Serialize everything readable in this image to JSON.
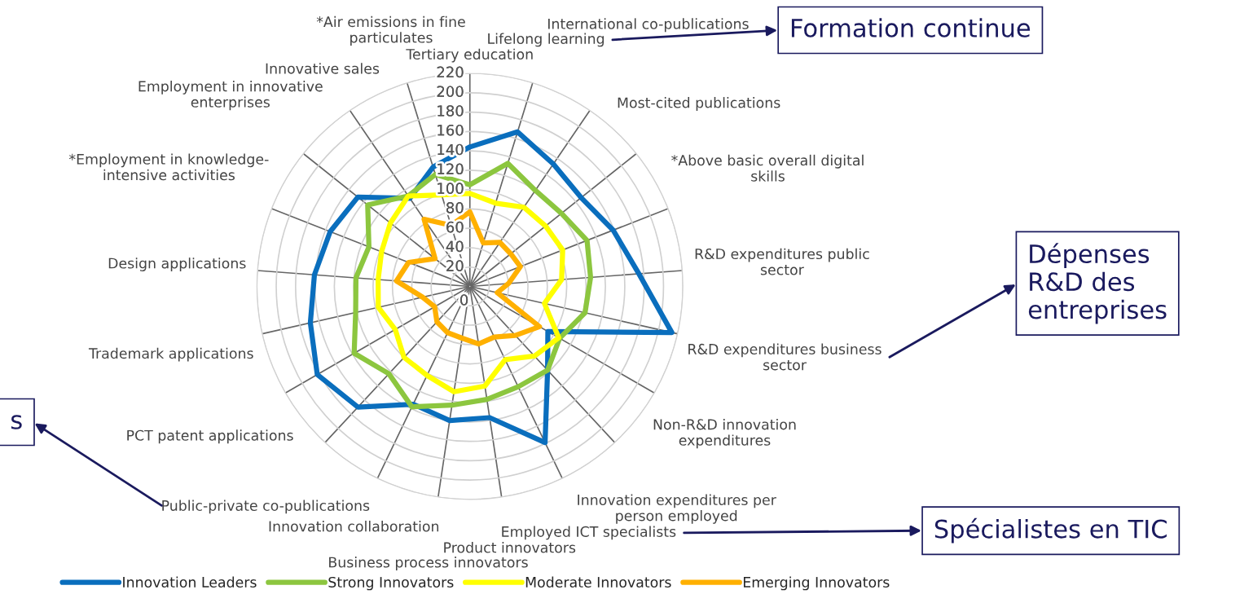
{
  "chart_data": {
    "type": "radar",
    "categories": [
      "Tertiary education",
      "Lifelong learning",
      "International co-publications",
      "Most-cited publications",
      "*Above basic overall digital\nskills",
      "R&D expenditures public\nsector",
      "R&D expenditures business\nsector",
      "Non-R&D innovation\nexpenditures",
      "Innovation expenditures per\nperson employed",
      "Employed ICT specialists",
      "Product innovators",
      "Business process innovators",
      "Innovation collaboration",
      "Public-private co-publications",
      "PCT patent applications",
      "Trademark applications",
      "Design applications",
      "*Employment in knowledge-\nintensive activities",
      "Employment in innovative\nenterprises",
      "Innovative sales",
      "*Air emissions in fine\nparticulates"
    ],
    "series": [
      {
        "name": "Innovation Leaders",
        "color": "#0a6ebd",
        "values": [
          144,
          167,
          153,
          147,
          159,
          175,
          214,
          93,
          118,
          179,
          137,
          140,
          135,
          170,
          182,
          169,
          161,
          155,
          148,
          110,
          129
        ]
      },
      {
        "name": "Strong Innovators",
        "color": "#8cc63f",
        "values": [
          105,
          133,
          120,
          121,
          130,
          125,
          122,
          107,
          118,
          115,
          118,
          124,
          138,
          123,
          138,
          121,
          118,
          112,
          135,
          113,
          121
        ]
      },
      {
        "name": "Moderate Innovators",
        "color": "#ffff00",
        "values": [
          96,
          90,
          99,
          100,
          103,
          95,
          79,
          106,
          98,
          84,
          104,
          110,
          102,
          100,
          89,
          97,
          95,
          98,
          105,
          113,
          99
        ]
      },
      {
        "name": "Emerging Innovators",
        "color": "#ffb000",
        "values": [
          77,
          47,
          55,
          54,
          56,
          40,
          29,
          83,
          69,
          58,
          60,
          54,
          53,
          50,
          42,
          50,
          76,
          68,
          46,
          84,
          66
        ]
      }
    ],
    "ylim": [
      0,
      220
    ],
    "yticks": [
      0,
      20,
      40,
      60,
      80,
      100,
      120,
      140,
      160,
      180,
      200,
      220
    ],
    "grid": true,
    "legend": "bottom",
    "line_style": "solid",
    "marker": "none",
    "annotations": [
      {
        "text": "Formation continue",
        "x": "Lifelong learning"
      },
      {
        "text": "Dépenses\nR&D des\nentreprises",
        "x": "R&D expenditures business\nsector"
      },
      {
        "text": "Spécialistes en TIC",
        "x": "Employed ICT specialists"
      },
      {
        "text": "s",
        "x": "Public-private co-publications"
      }
    ]
  }
}
